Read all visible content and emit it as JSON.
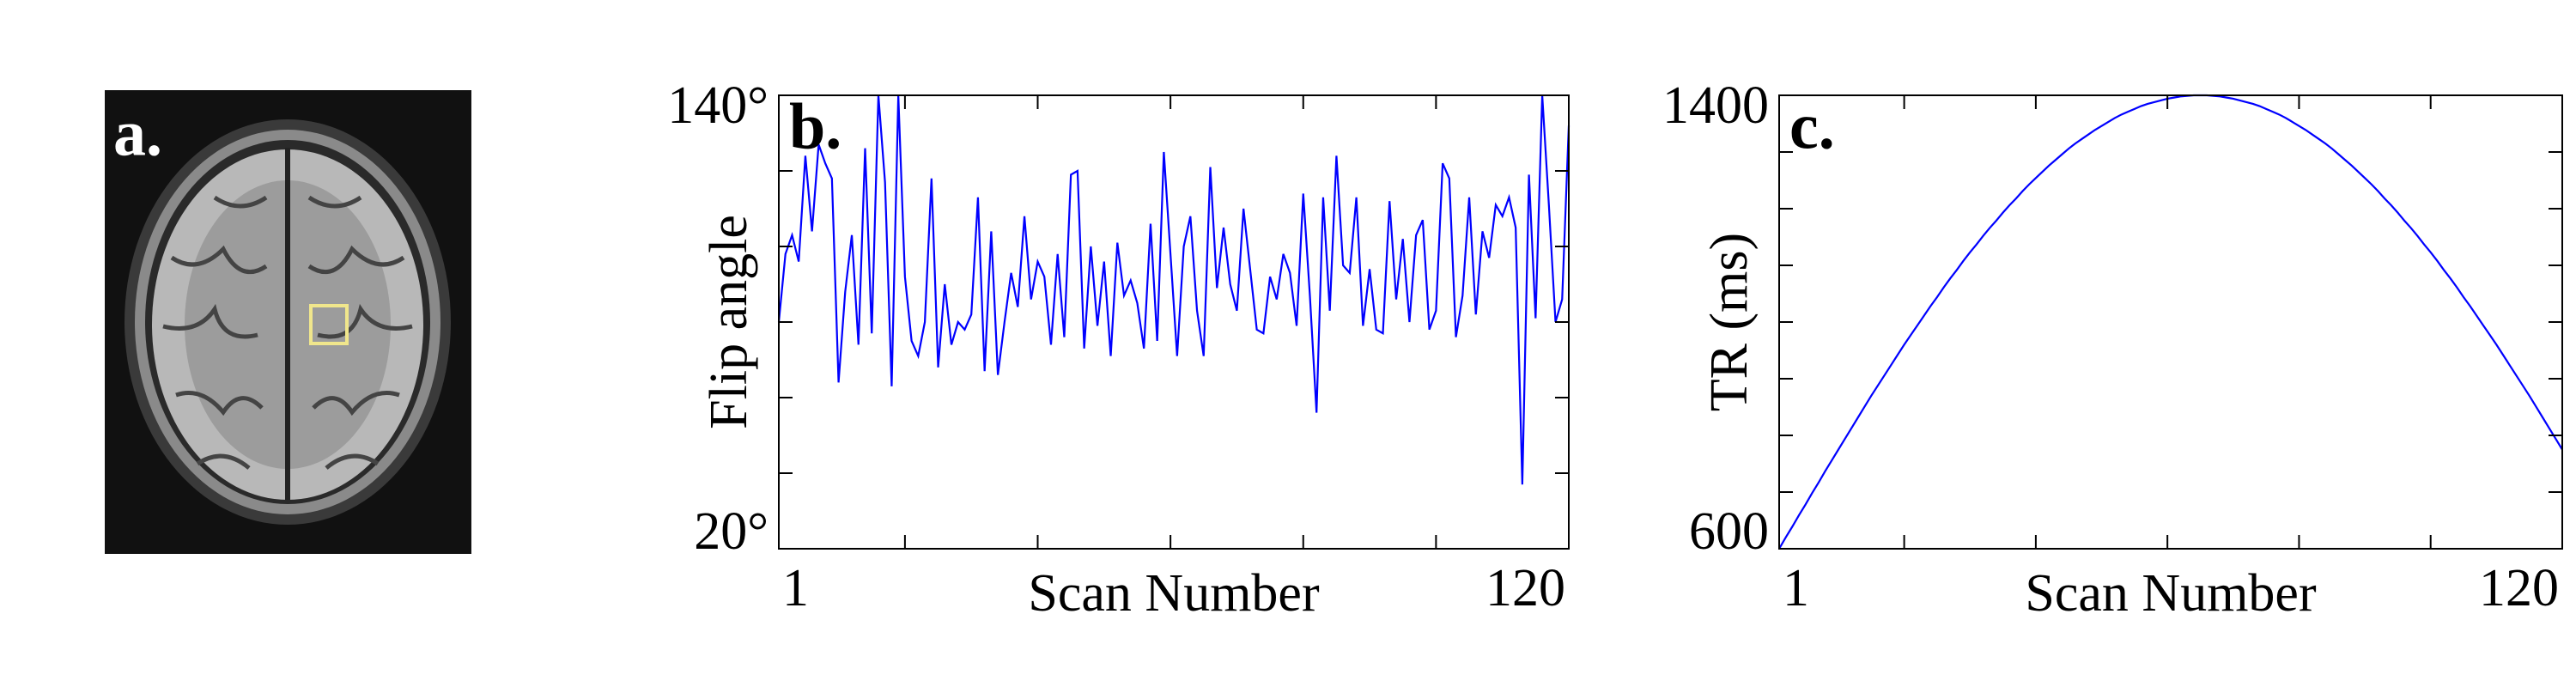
{
  "image_panel": {
    "label": "a."
  },
  "chart_data": [
    {
      "type": "line",
      "panel_label": "b.",
      "ylabel": "Flip angle",
      "xlabel": "Scan Number",
      "x": [
        1,
        2,
        3,
        4,
        5,
        6,
        7,
        8,
        9,
        10,
        11,
        12,
        13,
        14,
        15,
        16,
        17,
        18,
        19,
        20,
        21,
        22,
        23,
        24,
        25,
        26,
        27,
        28,
        29,
        30,
        31,
        32,
        33,
        34,
        35,
        36,
        37,
        38,
        39,
        40,
        41,
        42,
        43,
        44,
        45,
        46,
        47,
        48,
        49,
        50,
        51,
        52,
        53,
        54,
        55,
        56,
        57,
        58,
        59,
        60,
        61,
        62,
        63,
        64,
        65,
        66,
        67,
        68,
        69,
        70,
        71,
        72,
        73,
        74,
        75,
        76,
        77,
        78,
        79,
        80,
        81,
        82,
        83,
        84,
        85,
        86,
        87,
        88,
        89,
        90,
        91,
        92,
        93,
        94,
        95,
        96,
        97,
        98,
        99,
        100,
        101,
        102,
        103,
        104,
        105,
        106,
        107,
        108,
        109,
        110,
        111,
        112,
        113,
        114,
        115,
        116,
        117,
        118,
        119,
        120
      ],
      "series": [
        {
          "color": "#0000ff",
          "values": [
            80,
            98,
            103,
            96,
            124,
            104,
            127,
            122,
            118,
            64,
            88,
            103,
            74,
            126,
            77,
            140,
            117,
            63,
            140,
            92,
            75,
            71,
            80,
            118,
            68,
            90,
            74,
            80,
            78,
            82,
            113,
            67,
            104,
            66,
            80,
            93,
            84,
            108,
            86,
            96,
            92,
            74,
            98,
            76,
            119,
            120,
            73,
            100,
            79,
            96,
            71,
            101,
            87,
            91,
            85,
            73,
            106,
            75,
            125,
            98,
            71,
            100,
            108,
            83,
            71,
            121,
            89,
            105,
            90,
            83,
            110,
            94,
            78,
            77,
            92,
            86,
            98,
            93,
            79,
            114,
            87,
            56,
            113,
            83,
            124,
            95,
            93,
            113,
            79,
            94,
            78,
            77,
            112,
            86,
            102,
            80,
            103,
            107,
            78,
            83,
            122,
            118,
            76,
            87,
            113,
            82,
            104,
            97,
            111,
            108,
            113,
            105,
            37,
            119,
            81,
            140,
            111,
            80,
            86,
            132
          ]
        }
      ],
      "xlim": [
        1,
        120
      ],
      "ylim": [
        20,
        140
      ],
      "xticks": [
        1,
        120
      ],
      "xminorticks": [
        20,
        40,
        60,
        80,
        100
      ],
      "yticks": [
        {
          "value": 20,
          "label": "20°"
        },
        {
          "value": 140,
          "label": "140°"
        }
      ],
      "yminorticks": [
        40,
        60,
        80,
        100,
        120
      ]
    },
    {
      "type": "line",
      "panel_label": "c.",
      "ylabel": "TR (ms)",
      "xlabel": "Scan Number",
      "x": [
        1,
        2,
        3,
        4,
        5,
        6,
        7,
        8,
        9,
        10,
        11,
        12,
        13,
        14,
        15,
        16,
        17,
        18,
        19,
        20,
        21,
        22,
        23,
        24,
        25,
        26,
        27,
        28,
        29,
        30,
        31,
        32,
        33,
        34,
        35,
        36,
        37,
        38,
        39,
        40,
        41,
        42,
        43,
        44,
        45,
        46,
        47,
        48,
        49,
        50,
        51,
        52,
        53,
        54,
        55,
        56,
        57,
        58,
        59,
        60,
        61,
        62,
        63,
        64,
        65,
        66,
        67,
        68,
        69,
        70,
        71,
        72,
        73,
        74,
        75,
        76,
        77,
        78,
        79,
        80,
        81,
        82,
        83,
        84,
        85,
        86,
        87,
        88,
        89,
        90,
        91,
        92,
        93,
        94,
        95,
        96,
        97,
        98,
        99,
        100,
        101,
        102,
        103,
        104,
        105,
        106,
        107,
        108,
        109,
        110,
        111,
        112,
        113,
        114,
        115,
        116,
        117,
        118,
        119,
        120
      ],
      "series": [
        {
          "color": "#0000ff",
          "values": [
            600,
            620,
            639,
            659,
            678,
            698,
            717,
            737,
            756,
            775,
            794,
            813,
            832,
            851,
            870,
            888,
            906,
            924,
            942,
            960,
            977,
            994,
            1011,
            1028,
            1044,
            1061,
            1077,
            1092,
            1108,
            1123,
            1137,
            1152,
            1166,
            1179,
            1193,
            1206,
            1218,
            1231,
            1243,
            1254,
            1265,
            1276,
            1286,
            1296,
            1306,
            1315,
            1323,
            1331,
            1339,
            1346,
            1353,
            1360,
            1366,
            1371,
            1376,
            1381,
            1385,
            1388,
            1391,
            1394,
            1396,
            1398,
            1399,
            1400,
            1400,
            1400,
            1399,
            1398,
            1396,
            1394,
            1391,
            1388,
            1385,
            1381,
            1376,
            1371,
            1366,
            1360,
            1353,
            1346,
            1339,
            1331,
            1323,
            1315,
            1306,
            1296,
            1286,
            1276,
            1265,
            1254,
            1243,
            1231,
            1218,
            1206,
            1193,
            1179,
            1166,
            1152,
            1137,
            1123,
            1108,
            1092,
            1077,
            1061,
            1044,
            1028,
            1011,
            994,
            977,
            960,
            942,
            924,
            906,
            888,
            870,
            851,
            832,
            813,
            794,
            775
          ]
        }
      ],
      "xlim": [
        1,
        120
      ],
      "ylim": [
        600,
        1400
      ],
      "xticks": [
        1,
        120
      ],
      "xminorticks": [
        20,
        40,
        60,
        80,
        100
      ],
      "yticks": [
        600,
        1400
      ],
      "yminorticks": [
        700,
        800,
        900,
        1000,
        1100,
        1200,
        1300
      ]
    }
  ]
}
